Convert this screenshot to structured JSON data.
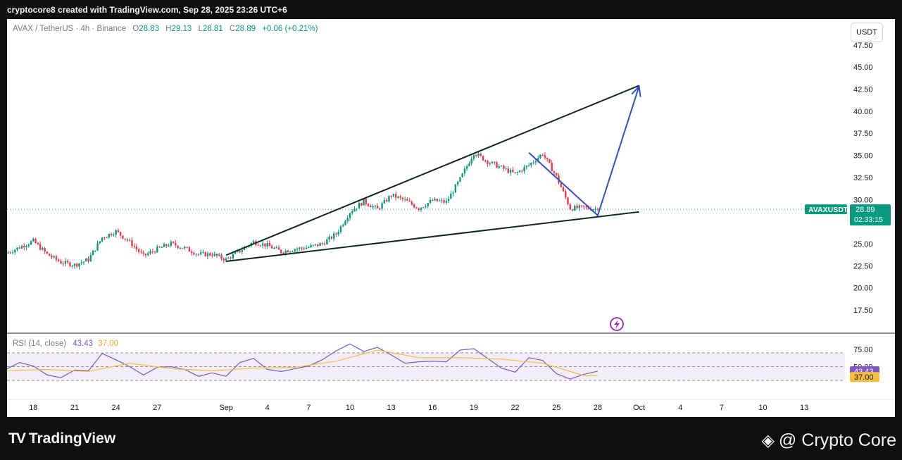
{
  "header": {
    "attribution": "cryptocore8 created with TradingView.com, Sep 28, 2025 23:26 UTC+6"
  },
  "legend": {
    "symbol": "AVAX / TetherUS · 4h · Binance",
    "o_label": "O",
    "o_value": "28.83",
    "h_label": "H",
    "h_value": "29.13",
    "l_label": "L",
    "l_value": "28.81",
    "c_label": "C",
    "c_value": "28.89",
    "change": "+0.06 (+0.21%)"
  },
  "currency_button": "USDT",
  "price_tag": {
    "symbol": "AVAXUSDT",
    "price": "28.89",
    "countdown": "02:33:15"
  },
  "rsi_legend": {
    "label": "RSI (14, close)",
    "value": "43.43",
    "ma_value": "37.00"
  },
  "rsi_tags": {
    "rsi": "43.43",
    "ma": "37.00"
  },
  "footer": {
    "brand": "TradingView",
    "watermark": "@ Crypto Core"
  },
  "colors": {
    "up": "#089981",
    "down": "#f23645",
    "trendline": "#0d2b1a",
    "projection": "#2f4fd1",
    "rsi": "#7e57c2",
    "rsi_ma": "#f5c042",
    "rsi_band": "#ede7f6"
  },
  "chart_data": {
    "type": "candlestick",
    "title": "AVAX / TetherUS · 4h · Binance",
    "ylabel": "USDT",
    "y_ticks": [
      17.5,
      20.0,
      22.5,
      25.0,
      27.5,
      30.0,
      32.5,
      35.0,
      37.5,
      40.0,
      42.5,
      45.0,
      47.5
    ],
    "y_tick_labels": [
      "17.50",
      "20.00",
      "22.50",
      "25.00",
      "27.50",
      "30.00",
      "32.50",
      "35.00",
      "37.50",
      "40.00",
      "42.50",
      "45.00",
      "47.50"
    ],
    "x_ticks": [
      "2025-08-18",
      "2025-08-21",
      "2025-08-24",
      "2025-08-27",
      "2025-09-01",
      "2025-09-04",
      "2025-09-07",
      "2025-09-10",
      "2025-09-13",
      "2025-09-16",
      "2025-09-19",
      "2025-09-22",
      "2025-09-25",
      "2025-09-28",
      "2025-10-01",
      "2025-10-04",
      "2025-10-07",
      "2025-10-10",
      "2025-10-13"
    ],
    "x_tick_labels": [
      "18",
      "21",
      "24",
      "27",
      "Sep",
      "4",
      "7",
      "10",
      "13",
      "16",
      "19",
      "22",
      "25",
      "28",
      "Oct",
      "4",
      "7",
      "10",
      "13"
    ],
    "ylim": [
      15.3,
      50.1
    ],
    "price_path": [
      [
        "2025-08-16",
        23.9
      ],
      [
        "2025-08-17",
        24.6
      ],
      [
        "2025-08-18",
        25.3
      ],
      [
        "2025-08-19",
        23.8
      ],
      [
        "2025-08-20",
        22.9
      ],
      [
        "2025-08-21",
        22.6
      ],
      [
        "2025-08-22",
        23.2
      ],
      [
        "2025-08-23",
        25.7
      ],
      [
        "2025-08-24",
        26.4
      ],
      [
        "2025-08-25",
        25.2
      ],
      [
        "2025-08-26",
        23.6
      ],
      [
        "2025-08-27",
        24.4
      ],
      [
        "2025-08-28",
        25.0
      ],
      [
        "2025-08-29",
        24.5
      ],
      [
        "2025-08-30",
        23.8
      ],
      [
        "2025-08-31",
        23.8
      ],
      [
        "2025-09-01",
        23.2
      ],
      [
        "2025-09-02",
        24.2
      ],
      [
        "2025-09-03",
        25.2
      ],
      [
        "2025-09-04",
        24.8
      ],
      [
        "2025-09-05",
        24.1
      ],
      [
        "2025-09-06",
        24.4
      ],
      [
        "2025-09-07",
        24.6
      ],
      [
        "2025-09-08",
        25.0
      ],
      [
        "2025-09-09",
        26.1
      ],
      [
        "2025-09-10",
        28.6
      ],
      [
        "2025-09-11",
        29.8
      ],
      [
        "2025-09-12",
        28.9
      ],
      [
        "2025-09-13",
        30.5
      ],
      [
        "2025-09-14",
        29.9
      ],
      [
        "2025-09-15",
        29.0
      ],
      [
        "2025-09-16",
        29.9
      ],
      [
        "2025-09-17",
        29.7
      ],
      [
        "2025-09-18",
        32.3
      ],
      [
        "2025-09-19",
        35.3
      ],
      [
        "2025-09-20",
        34.3
      ],
      [
        "2025-09-21",
        33.6
      ],
      [
        "2025-09-22",
        32.9
      ],
      [
        "2025-09-23",
        33.9
      ],
      [
        "2025-09-24",
        35.2
      ],
      [
        "2025-09-25",
        32.6
      ],
      [
        "2025-09-26",
        29.0
      ],
      [
        "2025-09-27",
        29.1
      ],
      [
        "2025-09-28",
        28.89
      ]
    ],
    "last_close": 28.89,
    "drawings": {
      "upper_trendline": [
        [
          "2025-09-01",
          23.7
        ],
        [
          "2025-10-01",
          42.9
        ]
      ],
      "lower_trendline": [
        [
          "2025-09-01",
          23.0
        ],
        [
          "2025-10-01",
          28.6
        ]
      ],
      "projection_arrow": [
        [
          "2025-09-23",
          35.3
        ],
        [
          "2025-09-28",
          28.2
        ],
        [
          "2025-10-01",
          42.8
        ]
      ]
    },
    "rsi": {
      "title": "RSI (14, close)",
      "y_ticks": [
        50.0,
        75.0
      ],
      "y_tick_labels": [
        "50.00",
        "75.00"
      ],
      "band": [
        30,
        70
      ],
      "ylim": [
        25,
        90
      ],
      "rsi_path": [
        [
          "2025-08-16",
          46
        ],
        [
          "2025-08-17",
          56
        ],
        [
          "2025-08-18",
          51
        ],
        [
          "2025-08-19",
          38
        ],
        [
          "2025-08-20",
          34
        ],
        [
          "2025-08-21",
          45
        ],
        [
          "2025-08-22",
          44
        ],
        [
          "2025-08-23",
          69
        ],
        [
          "2025-08-24",
          60
        ],
        [
          "2025-08-25",
          50
        ],
        [
          "2025-08-26",
          38
        ],
        [
          "2025-08-27",
          49
        ],
        [
          "2025-08-28",
          50
        ],
        [
          "2025-08-29",
          46
        ],
        [
          "2025-08-30",
          36
        ],
        [
          "2025-08-31",
          41
        ],
        [
          "2025-09-01",
          36
        ],
        [
          "2025-09-02",
          56
        ],
        [
          "2025-09-03",
          62
        ],
        [
          "2025-09-04",
          46
        ],
        [
          "2025-09-05",
          43
        ],
        [
          "2025-09-06",
          47
        ],
        [
          "2025-09-07",
          51
        ],
        [
          "2025-09-08",
          60
        ],
        [
          "2025-09-09",
          73
        ],
        [
          "2025-09-10",
          83
        ],
        [
          "2025-09-11",
          72
        ],
        [
          "2025-09-12",
          78
        ],
        [
          "2025-09-13",
          67
        ],
        [
          "2025-09-14",
          55
        ],
        [
          "2025-09-15",
          57
        ],
        [
          "2025-09-16",
          58
        ],
        [
          "2025-09-17",
          57
        ],
        [
          "2025-09-18",
          74
        ],
        [
          "2025-09-19",
          76
        ],
        [
          "2025-09-20",
          62
        ],
        [
          "2025-09-21",
          48
        ],
        [
          "2025-09-22",
          42
        ],
        [
          "2025-09-23",
          63
        ],
        [
          "2025-09-24",
          59
        ],
        [
          "2025-09-25",
          40
        ],
        [
          "2025-09-26",
          32
        ],
        [
          "2025-09-27",
          39
        ],
        [
          "2025-09-28",
          43.43
        ]
      ],
      "ma_path": [
        [
          "2025-08-16",
          44
        ],
        [
          "2025-08-19",
          46
        ],
        [
          "2025-08-22",
          43
        ],
        [
          "2025-08-25",
          55
        ],
        [
          "2025-08-28",
          47
        ],
        [
          "2025-08-31",
          44
        ],
        [
          "2025-09-03",
          48
        ],
        [
          "2025-09-06",
          49
        ],
        [
          "2025-09-09",
          58
        ],
        [
          "2025-09-12",
          74
        ],
        [
          "2025-09-15",
          63
        ],
        [
          "2025-09-18",
          63
        ],
        [
          "2025-09-21",
          61
        ],
        [
          "2025-09-24",
          55
        ],
        [
          "2025-09-27",
          37
        ],
        [
          "2025-09-28",
          37
        ]
      ],
      "last_rsi": 43.43,
      "last_ma": 37.0
    }
  }
}
